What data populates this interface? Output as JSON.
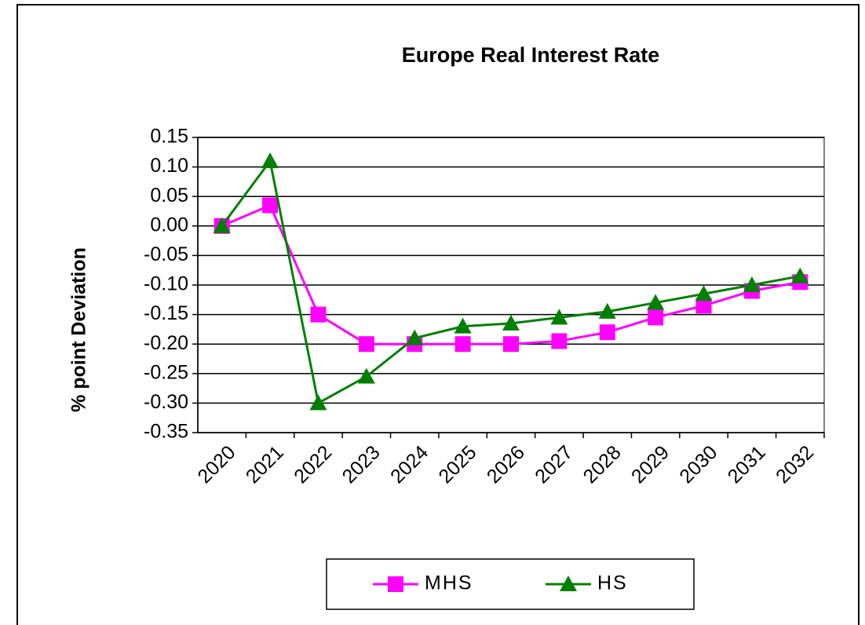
{
  "chart_data": {
    "type": "line",
    "title": "Europe Real Interest Rate",
    "y_label": "% point Deviation",
    "categories": [
      "2020",
      "2021",
      "2022",
      "2023",
      "2024",
      "2025",
      "2026",
      "2027",
      "2028",
      "2029",
      "2030",
      "2031",
      "2032"
    ],
    "series": [
      {
        "name": "MHS",
        "color": "#ff00ff",
        "marker": "square",
        "values": [
          0,
          0.035,
          -0.15,
          -0.2,
          -0.2,
          -0.2,
          -0.2,
          -0.195,
          -0.18,
          -0.155,
          -0.135,
          -0.11,
          -0.095
        ]
      },
      {
        "name": "HS",
        "color": "#008000",
        "marker": "triangle",
        "values": [
          0,
          0.11,
          -0.3,
          -0.255,
          -0.19,
          -0.17,
          -0.165,
          -0.155,
          -0.145,
          -0.13,
          -0.115,
          -0.1,
          -0.085
        ]
      }
    ],
    "ylim": [
      -0.35,
      0.15
    ],
    "yticks": [
      0.15,
      {
        "value": 0.1,
        "label": "0.10"
      },
      0.05,
      {
        "value": 0,
        "label": "0.00"
      },
      -0.05,
      {
        "value": -0.1,
        "label": "-0.10"
      },
      -0.15,
      {
        "value": -0.2,
        "label": "-0.20"
      },
      -0.25,
      {
        "value": -0.3,
        "label": "-0.30"
      },
      -0.35
    ],
    "grid": true,
    "legend": "bottom"
  }
}
